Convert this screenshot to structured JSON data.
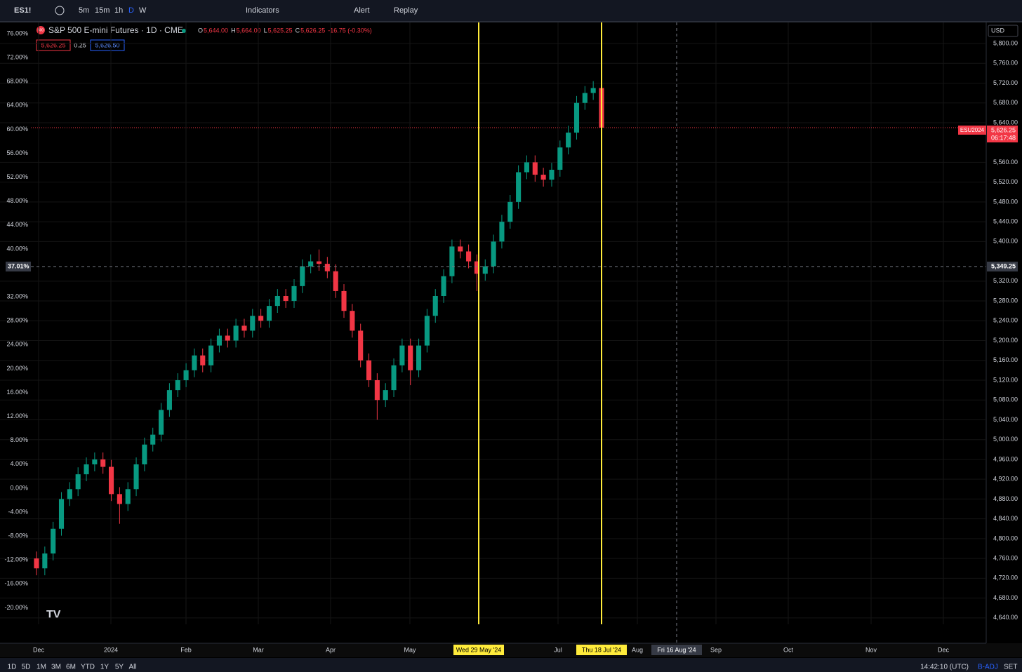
{
  "toolbar": {
    "symbol": "ES1!",
    "intervals": [
      "5m",
      "15m",
      "1h",
      "D",
      "W"
    ],
    "indicators": "Indicators",
    "alert": "Alert",
    "replay": "Replay"
  },
  "legend": {
    "title": "S&P 500 E-mini Futures · 1D · CME",
    "badge": "500",
    "o_key": "O",
    "o": "5,644.00",
    "h_key": "H",
    "h": "5,664.00",
    "l_key": "L",
    "l": "5,625.25",
    "c_key": "C",
    "c": "5,626.25",
    "change": "-16.75 (-0.30%)",
    "bid": "5,626.25",
    "spread": "0.25",
    "ask": "5,626.50"
  },
  "price_tag": {
    "symbol": "ESU2024",
    "price": "5,626.25",
    "countdown": "06:17:48"
  },
  "crosshair": {
    "percent": "37.01%",
    "price": "5,349.25"
  },
  "currency": "USD",
  "time_axis": {
    "labels": [
      "Dec",
      "2024",
      "Feb",
      "Mar",
      "Apr",
      "May",
      "Jul",
      "Aug",
      "Sep",
      "Oct",
      "Nov",
      "Dec"
    ],
    "marker_1": "Wed 29 May '24",
    "marker_2": "Thu 18 Jul '24",
    "cursor": "Fri 16 Aug '24"
  },
  "bottom_bar": {
    "ranges": [
      "1D",
      "5D",
      "1M",
      "3M",
      "6M",
      "YTD",
      "1Y",
      "5Y",
      "All"
    ],
    "clock": "14:42:10 (UTC)",
    "adj": "B-ADJ",
    "session": "SET"
  },
  "chart_data": {
    "type": "candlestick",
    "up_color": "#089981",
    "down_color": "#f23645",
    "open": [
      4760,
      4740,
      4770,
      4820,
      4880,
      4900,
      4930,
      4950,
      4960,
      4945,
      4890,
      4870,
      4900,
      4950,
      4990,
      5010,
      5060,
      5100,
      5120,
      5140,
      5170,
      5150,
      5190,
      5210,
      5200,
      5230,
      5220,
      5250,
      5240,
      5270,
      5290,
      5280,
      5310,
      5350,
      5360,
      5355,
      5340,
      5300,
      5260,
      5220,
      5160,
      5120,
      5080,
      5100,
      5150,
      5190,
      5140,
      5190,
      5250,
      5290,
      5330,
      5390,
      5380,
      5360,
      5335,
      5350,
      5400,
      5440,
      5480,
      5540,
      5560,
      5535,
      5525,
      5545,
      5590,
      5620,
      5680,
      5700,
      5710
    ],
    "high": [
      4774,
      4784,
      4834,
      4894,
      4914,
      4944,
      4964,
      4974,
      4974,
      4959,
      4904,
      4914,
      4964,
      5004,
      5024,
      5074,
      5114,
      5134,
      5154,
      5184,
      5184,
      5204,
      5224,
      5224,
      5244,
      5244,
      5264,
      5264,
      5284,
      5304,
      5304,
      5324,
      5364,
      5374,
      5384,
      5369,
      5354,
      5314,
      5274,
      5234,
      5174,
      5134,
      5114,
      5164,
      5204,
      5204,
      5204,
      5264,
      5304,
      5344,
      5404,
      5404,
      5394,
      5374,
      5364,
      5414,
      5454,
      5494,
      5554,
      5574,
      5574,
      5549,
      5559,
      5604,
      5634,
      5694,
      5714,
      5724,
      5724
    ],
    "low": [
      4726,
      4726,
      4756,
      4806,
      4866,
      4886,
      4916,
      4936,
      4931,
      4876,
      4830,
      4856,
      4886,
      4936,
      4976,
      4996,
      5046,
      5086,
      5106,
      5126,
      5136,
      5136,
      5176,
      5186,
      5186,
      5206,
      5206,
      5226,
      5226,
      5256,
      5266,
      5266,
      5296,
      5336,
      5341,
      5326,
      5286,
      5246,
      5206,
      5146,
      5106,
      5040,
      5066,
      5086,
      5136,
      5110,
      5126,
      5176,
      5236,
      5276,
      5316,
      5366,
      5346,
      5300,
      5321,
      5336,
      5386,
      5426,
      5466,
      5526,
      5521,
      5511,
      5511,
      5531,
      5576,
      5606,
      5666,
      5686,
      5626
    ],
    "close": [
      4740,
      4770,
      4820,
      4880,
      4900,
      4930,
      4950,
      4960,
      4945,
      4890,
      4870,
      4900,
      4950,
      4990,
      5010,
      5060,
      5100,
      5120,
      5140,
      5170,
      5150,
      5190,
      5210,
      5200,
      5230,
      5220,
      5250,
      5240,
      5270,
      5290,
      5280,
      5310,
      5350,
      5360,
      5355,
      5340,
      5300,
      5260,
      5220,
      5160,
      5120,
      5080,
      5100,
      5150,
      5190,
      5140,
      5190,
      5250,
      5290,
      5330,
      5390,
      5380,
      5360,
      5335,
      5350,
      5400,
      5440,
      5480,
      5540,
      5560,
      5535,
      5525,
      5545,
      5590,
      5620,
      5680,
      5700,
      5710,
      5630
    ],
    "ylim": [
      4627,
      5842.5
    ],
    "yticks": [
      {
        "value": 5800,
        "label": "5,800.00"
      },
      {
        "value": 5760,
        "label": "5,760.00"
      },
      {
        "value": 5720,
        "label": "5,720.00"
      },
      {
        "value": 5680,
        "label": "5,680.00"
      },
      {
        "value": 5640,
        "label": "5,640.00"
      },
      {
        "value": 5560,
        "label": "5,560.00"
      },
      {
        "value": 5520,
        "label": "5,520.00"
      },
      {
        "value": 5480,
        "label": "5,480.00"
      },
      {
        "value": 5440,
        "label": "5,440.00"
      },
      {
        "value": 5400,
        "label": "5,400.00"
      },
      {
        "value": 5320,
        "label": "5,320.00"
      },
      {
        "value": 5280,
        "label": "5,280.00"
      },
      {
        "value": 5240,
        "label": "5,240.00"
      },
      {
        "value": 5200,
        "label": "5,200.00"
      },
      {
        "value": 5160,
        "label": "5,160.00"
      },
      {
        "value": 5120,
        "label": "5,120.00"
      },
      {
        "value": 5080,
        "label": "5,080.00"
      },
      {
        "value": 5040,
        "label": "5,040.00"
      },
      {
        "value": 5000,
        "label": "5,000.00"
      },
      {
        "value": 4960,
        "label": "4,960.00"
      },
      {
        "value": 4920,
        "label": "4,920.00"
      },
      {
        "value": 4880,
        "label": "4,880.00"
      },
      {
        "value": 4840,
        "label": "4,840.00"
      },
      {
        "value": 4800,
        "label": "4,800.00"
      },
      {
        "value": 4760,
        "label": "4,760.00"
      },
      {
        "value": 4720,
        "label": "4,720.00"
      },
      {
        "value": 4680,
        "label": "4,680.00"
      },
      {
        "value": 4640,
        "label": "4,640.00"
      }
    ],
    "y2lim": [
      -22.77,
      77.88
    ],
    "y2ticks": [
      {
        "value": 76,
        "label": "76.00%"
      },
      {
        "value": 72,
        "label": "72.00%"
      },
      {
        "value": 68,
        "label": "68.00%"
      },
      {
        "value": 64,
        "label": "64.00%"
      },
      {
        "value": 60,
        "label": "60.00%"
      },
      {
        "value": 56,
        "label": "56.00%"
      },
      {
        "value": 52,
        "label": "52.00%"
      },
      {
        "value": 48,
        "label": "48.00%"
      },
      {
        "value": 44,
        "label": "44.00%"
      },
      {
        "value": 40,
        "label": "40.00%"
      },
      {
        "value": 32,
        "label": "32.00%"
      },
      {
        "value": 28,
        "label": "28.00%"
      },
      {
        "value": 24,
        "label": "24.00%"
      },
      {
        "value": 20,
        "label": "20.00%"
      },
      {
        "value": 16,
        "label": "16.00%"
      },
      {
        "value": 12,
        "label": "12.00%"
      },
      {
        "value": 8,
        "label": "8.00%"
      },
      {
        "value": 4,
        "label": "4.00%"
      },
      {
        "value": 0,
        "label": "0.00%"
      },
      {
        "value": -4,
        "label": "-4.00%"
      },
      {
        "value": -8,
        "label": "-8.00%"
      },
      {
        "value": -12,
        "label": "-12.00%"
      },
      {
        "value": -16,
        "label": "-16.00%"
      },
      {
        "value": -20,
        "label": "-20.00%"
      }
    ]
  }
}
